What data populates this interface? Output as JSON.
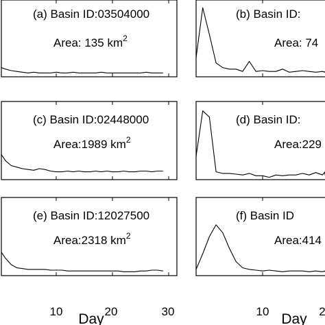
{
  "chart_data": [
    {
      "type": "line",
      "panel": "(a)",
      "basin_text": "(a) Basin ID:03504000",
      "area_text": "Area: 135 km",
      "area_sup": "2",
      "x": [
        0,
        1,
        2,
        3,
        4,
        5,
        6,
        7,
        8,
        9,
        10,
        11,
        12,
        13,
        14,
        15,
        16,
        17,
        18,
        19,
        20,
        21,
        22,
        23,
        24,
        25,
        26,
        27,
        28,
        29
      ],
      "y": [
        0.12,
        0.1,
        0.08,
        0.07,
        0.06,
        0.05,
        0.06,
        0.05,
        0.05,
        0.05,
        0.06,
        0.05,
        0.05,
        0.06,
        0.05,
        0.05,
        0.05,
        0.05,
        0.06,
        0.05,
        0.05,
        0.05,
        0.05,
        0.05,
        0.05,
        0.05,
        0.06,
        0.05,
        0.05,
        0.05
      ],
      "xlim": [
        0,
        30
      ],
      "ylim": [
        0,
        1
      ]
    },
    {
      "type": "line",
      "panel": "(b)",
      "basin_text": "(b) Basin ID:",
      "area_text": "Area: 74",
      "area_sup": "",
      "x": [
        0,
        1,
        2,
        3,
        4,
        5,
        6,
        7,
        8,
        9,
        10,
        11,
        12,
        13,
        14,
        15,
        16,
        17,
        18,
        19,
        20,
        21,
        22,
        23,
        24,
        25,
        26,
        27,
        28,
        29
      ],
      "y": [
        0.25,
        0.9,
        0.55,
        0.18,
        0.12,
        0.1,
        0.1,
        0.07,
        0.2,
        0.07,
        0.08,
        0.07,
        0.07,
        0.1,
        0.06,
        0.07,
        0.08,
        0.07,
        0.06,
        0.07,
        0.06,
        0.06,
        0.07,
        0.06,
        0.07,
        0.06,
        0.06,
        0.07,
        0.06,
        0.06
      ],
      "xlim": [
        0,
        30
      ],
      "ylim": [
        0,
        1
      ]
    },
    {
      "type": "line",
      "panel": "(c)",
      "basin_text": "(c) Basin ID:02448000",
      "area_text": "Area:1989 km",
      "area_sup": "2",
      "x": [
        0,
        1,
        2,
        3,
        4,
        5,
        6,
        7,
        8,
        9,
        10,
        11,
        12,
        13,
        14,
        15,
        16,
        17,
        18,
        19,
        20,
        21,
        22,
        23,
        24,
        25,
        26,
        27,
        28,
        29
      ],
      "y": [
        0.32,
        0.24,
        0.18,
        0.16,
        0.14,
        0.13,
        0.12,
        0.14,
        0.13,
        0.11,
        0.1,
        0.1,
        0.11,
        0.1,
        0.11,
        0.1,
        0.1,
        0.11,
        0.1,
        0.11,
        0.1,
        0.1,
        0.11,
        0.1,
        0.1,
        0.11,
        0.11,
        0.1,
        0.11,
        0.11
      ],
      "xlim": [
        0,
        30
      ],
      "ylim": [
        0,
        1
      ]
    },
    {
      "type": "line",
      "panel": "(d)",
      "basin_text": "(d) Basin ID:",
      "area_text": "Area:229",
      "area_sup": "",
      "x": [
        0,
        1,
        2,
        3,
        4,
        5,
        6,
        7,
        8,
        9,
        10,
        11,
        12,
        13,
        14,
        15,
        16,
        17,
        18,
        19,
        20,
        21,
        22,
        23,
        24,
        25,
        26,
        27,
        28,
        29
      ],
      "y": [
        0.3,
        0.88,
        0.8,
        0.1,
        0.08,
        0.08,
        0.07,
        0.06,
        0.08,
        0.05,
        0.05,
        0.03,
        0.06,
        0.05,
        0.06,
        0.06,
        0.08,
        0.06,
        0.09,
        0.06,
        0.1,
        0.09,
        0.08,
        0.07,
        0.1,
        0.07,
        0.06,
        0.07,
        0.06,
        0.06
      ],
      "xlim": [
        0,
        30
      ],
      "ylim": [
        0,
        1
      ]
    },
    {
      "type": "line",
      "panel": "(e)",
      "basin_text": "(e) Basin ID:12027500",
      "area_text": "Area:2318 km",
      "area_sup": "2",
      "x": [
        0,
        1,
        2,
        3,
        4,
        5,
        6,
        7,
        8,
        9,
        10,
        11,
        12,
        13,
        14,
        15,
        16,
        17,
        18,
        19,
        20,
        21,
        22,
        23,
        24,
        25,
        26,
        27,
        28,
        29
      ],
      "y": [
        0.3,
        0.22,
        0.14,
        0.1,
        0.09,
        0.08,
        0.08,
        0.08,
        0.08,
        0.07,
        0.07,
        0.07,
        0.06,
        0.06,
        0.06,
        0.06,
        0.06,
        0.06,
        0.06,
        0.06,
        0.06,
        0.06,
        0.05,
        0.05,
        0.05,
        0.06,
        0.06,
        0.07,
        0.07,
        0.06
      ],
      "xlim": [
        0,
        30
      ],
      "ylim": [
        0,
        1
      ]
    },
    {
      "type": "line",
      "panel": "(f)",
      "basin_text": "(f) Basin ID",
      "area_text": "Area:414",
      "area_sup": "",
      "x": [
        0,
        1,
        2,
        3,
        4,
        5,
        6,
        7,
        8,
        9,
        10,
        11,
        12,
        13,
        14,
        15,
        16,
        17,
        18,
        19,
        20,
        21,
        22,
        23,
        24,
        25,
        26,
        27,
        28,
        29
      ],
      "y": [
        0.08,
        0.28,
        0.5,
        0.65,
        0.55,
        0.35,
        0.18,
        0.1,
        0.08,
        0.07,
        0.06,
        0.07,
        0.06,
        0.05,
        0.06,
        0.06,
        0.06,
        0.05,
        0.06,
        0.05,
        0.06,
        0.05,
        0.06,
        0.05,
        0.06,
        0.05,
        0.06,
        0.05,
        0.05,
        0.05
      ],
      "xlim": [
        0,
        30
      ],
      "ylim": [
        0,
        1
      ]
    }
  ],
  "axes": {
    "xlabel": "Day",
    "left_ticks": [
      "10",
      "20",
      "30"
    ],
    "right_ticks": [
      "10",
      "2"
    ]
  }
}
